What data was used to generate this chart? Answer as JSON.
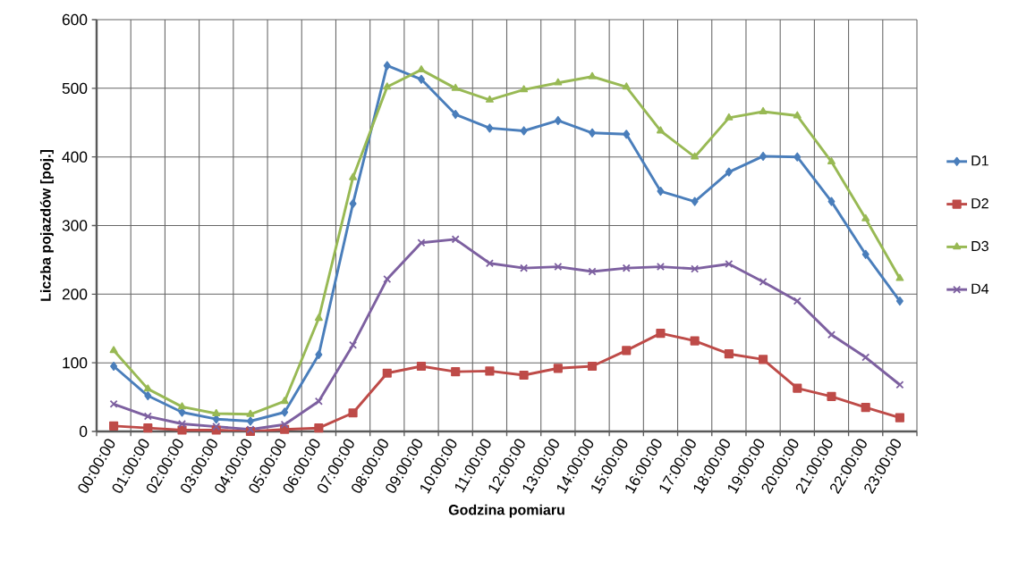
{
  "chart_data": {
    "type": "line",
    "xlabel": "Godzina pomiaru",
    "ylabel": "Liczba pojazdów  [poj.]",
    "categories": [
      "00:00:00",
      "01:00:00",
      "02:00:00",
      "03:00:00",
      "04:00:00",
      "05:00:00",
      "06:00:00",
      "07:00:00",
      "08:00:00",
      "09:00:00",
      "10:00:00",
      "11:00:00",
      "12:00:00",
      "13:00:00",
      "14:00:00",
      "15:00:00",
      "16:00:00",
      "17:00:00",
      "18:00:00",
      "19:00:00",
      "20:00:00",
      "21:00:00",
      "22:00:00",
      "23:00:00"
    ],
    "series": [
      {
        "name": "D1",
        "color": "#4a7ebb",
        "marker": "diamond",
        "values": [
          95,
          52,
          28,
          18,
          15,
          28,
          112,
          332,
          533,
          513,
          462,
          442,
          438,
          453,
          435,
          433,
          350,
          335,
          378,
          401,
          400,
          335,
          258,
          190
        ]
      },
      {
        "name": "D2",
        "color": "#be4b48",
        "marker": "square",
        "values": [
          8,
          5,
          2,
          2,
          0,
          3,
          5,
          27,
          85,
          95,
          87,
          88,
          82,
          92,
          95,
          118,
          143,
          132,
          113,
          105,
          63,
          51,
          35,
          20
        ]
      },
      {
        "name": "D3",
        "color": "#98b954",
        "marker": "triangle",
        "values": [
          118,
          62,
          36,
          26,
          25,
          44,
          165,
          370,
          502,
          527,
          500,
          483,
          498,
          508,
          517,
          502,
          438,
          400,
          457,
          466,
          460,
          393,
          310,
          223
        ]
      },
      {
        "name": "D4",
        "color": "#7d60a0",
        "marker": "cross",
        "values": [
          40,
          22,
          11,
          7,
          3,
          10,
          44,
          126,
          222,
          275,
          280,
          245,
          238,
          240,
          233,
          238,
          240,
          237,
          244,
          218,
          190,
          141,
          108,
          68
        ]
      }
    ],
    "ylim": [
      0,
      600
    ],
    "yticks": [
      0,
      100,
      200,
      300,
      400,
      500,
      600
    ],
    "grid": true,
    "legend": "right"
  }
}
